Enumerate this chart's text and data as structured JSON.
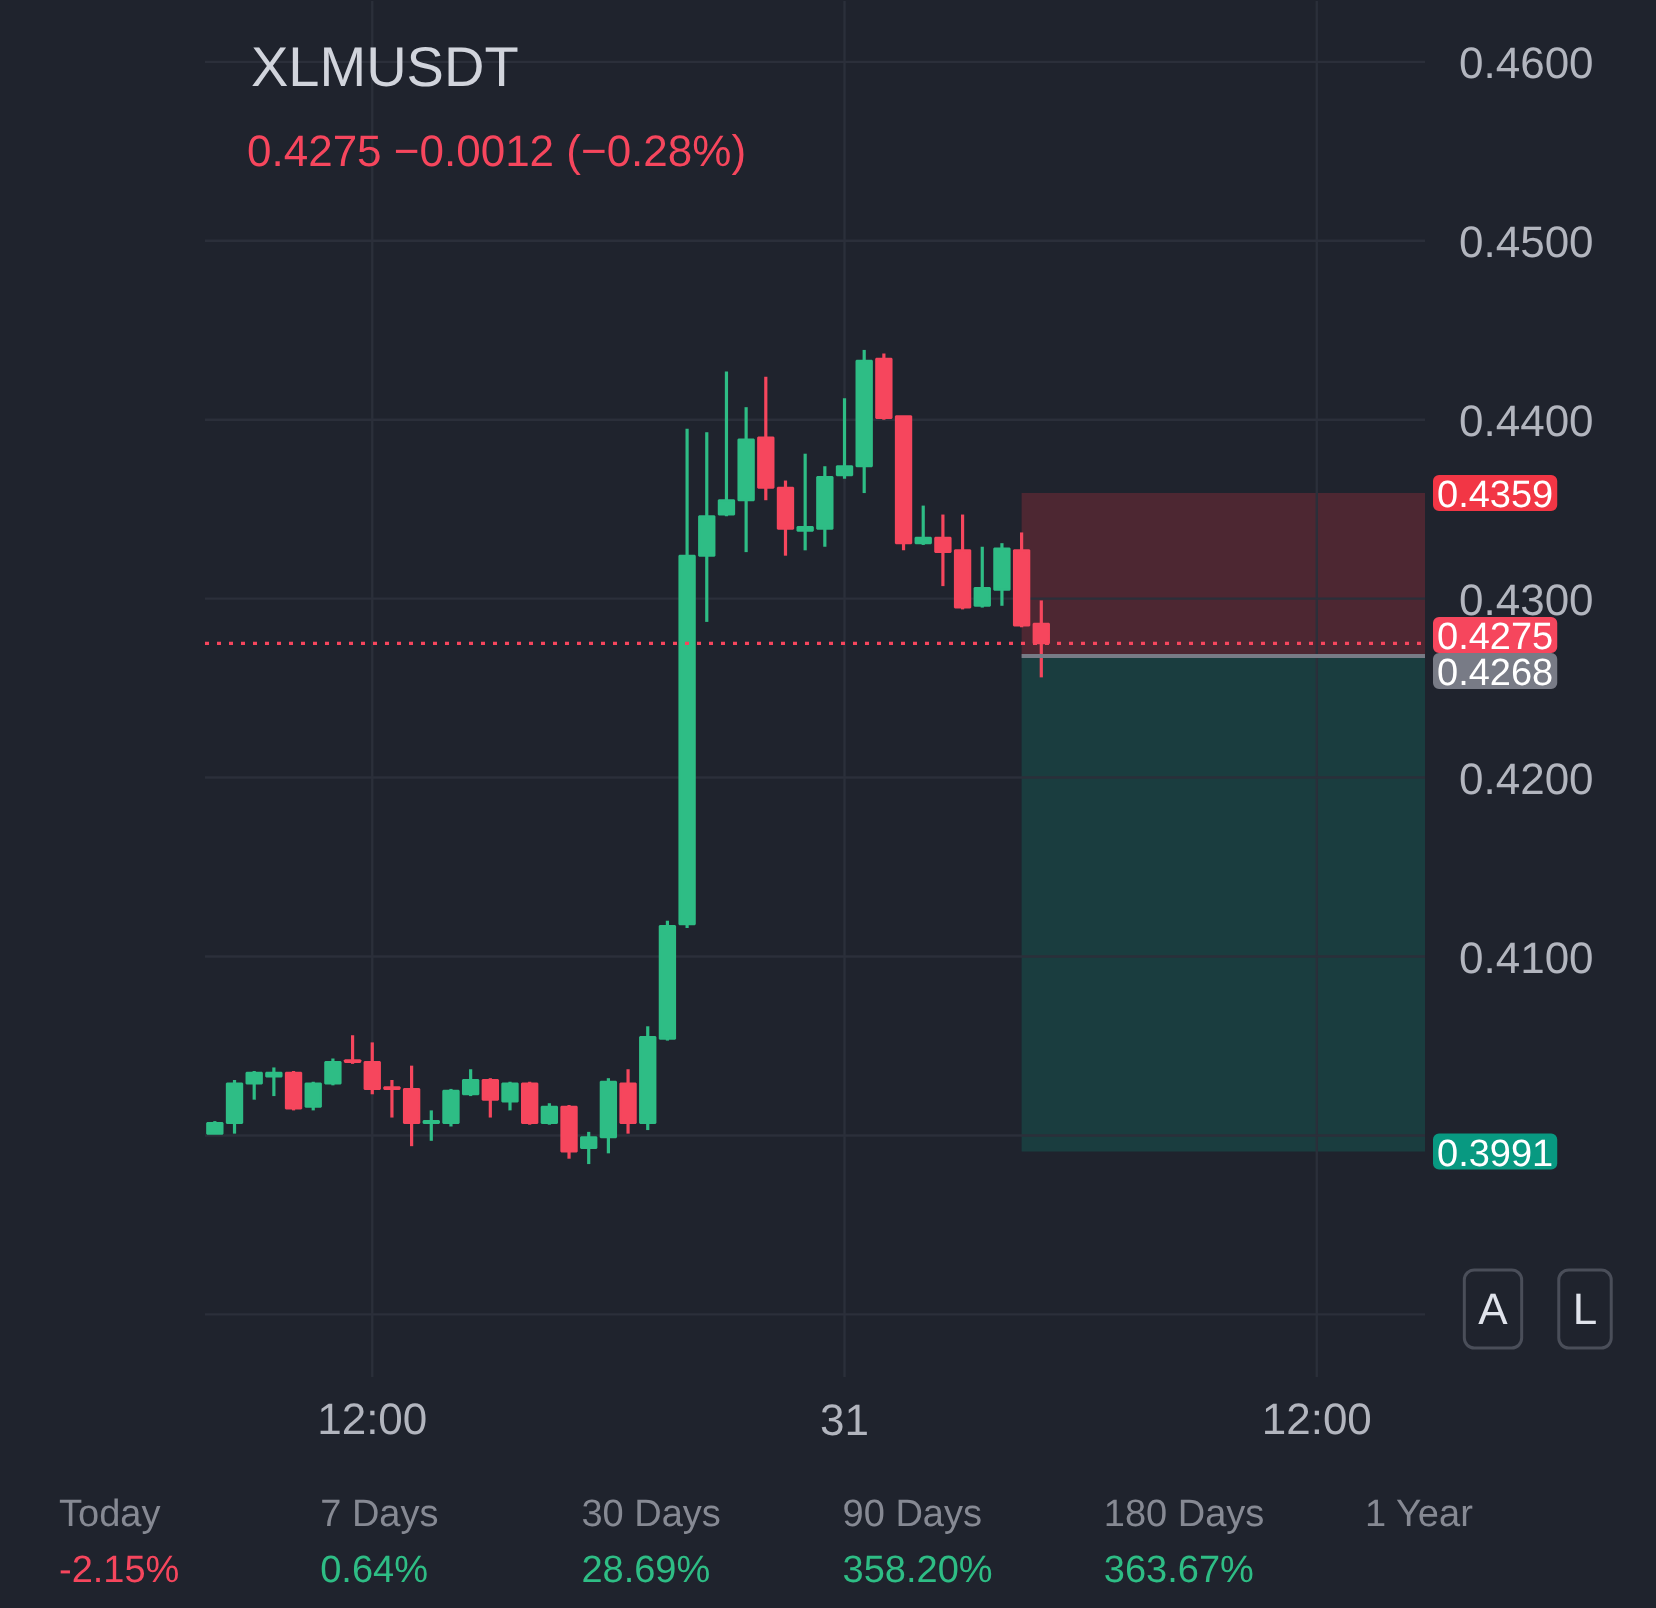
{
  "chart_data": {
    "type": "candlestick",
    "title": "XLMUSDT",
    "subtitle": "0.4275 −0.0012 (−0.28%)",
    "categories": [
      null,
      null,
      null,
      null,
      null,
      null,
      null,
      null,
      "12:00",
      null,
      null,
      null,
      null,
      null,
      null,
      null,
      null,
      null,
      null,
      null,
      null,
      null,
      null,
      null,
      null,
      null,
      null,
      null,
      null,
      null,
      null,
      null,
      "31",
      null,
      null,
      null,
      null,
      null,
      null,
      null,
      null,
      null,
      null,
      null,
      null,
      null,
      null,
      null,
      null,
      null,
      null,
      null,
      null,
      null,
      null,
      null,
      "12:00",
      null,
      null,
      null,
      null,
      null
    ],
    "ohlc": [
      [
        0.4001,
        0.4008,
        0.4001,
        0.4007
      ],
      [
        0.4007,
        0.4031,
        0.4001,
        0.4029
      ],
      [
        0.4029,
        0.4036,
        0.402,
        0.4035
      ],
      [
        0.4033,
        0.4038,
        0.4022,
        0.4035
      ],
      [
        0.4035,
        0.4036,
        0.4014,
        0.4015
      ],
      [
        0.4016,
        0.403,
        0.4014,
        0.4029
      ],
      [
        0.4029,
        0.4043,
        0.4028,
        0.4041
      ],
      [
        0.4042,
        0.4056,
        0.404,
        0.4041
      ],
      [
        0.4041,
        0.4052,
        0.4023,
        0.4026
      ],
      [
        0.4027,
        0.4031,
        0.401,
        0.4026
      ],
      [
        0.4026,
        0.4039,
        0.3994,
        0.4007
      ],
      [
        0.4007,
        0.4014,
        0.3997,
        0.4008
      ],
      [
        0.4007,
        0.4026,
        0.4005,
        0.4025
      ],
      [
        0.4023,
        0.4037,
        0.4022,
        0.4031
      ],
      [
        0.4031,
        0.4032,
        0.401,
        0.402
      ],
      [
        0.4019,
        0.403,
        0.4014,
        0.4029
      ],
      [
        0.4029,
        0.403,
        0.4006,
        0.4007
      ],
      [
        0.4007,
        0.4018,
        0.4006,
        0.4016
      ],
      [
        0.4016,
        0.4017,
        0.3987,
        0.3991
      ],
      [
        0.3993,
        0.4002,
        0.3984,
        0.3999
      ],
      [
        0.3999,
        0.4032,
        0.399,
        0.403
      ],
      [
        0.4029,
        0.4037,
        0.4001,
        0.4007
      ],
      [
        0.4007,
        0.4061,
        0.4003,
        0.4055
      ],
      [
        0.4054,
        0.412,
        0.4053,
        0.4117
      ],
      [
        0.4118,
        0.4395,
        0.4116,
        0.4324
      ],
      [
        0.4324,
        0.4393,
        0.4287,
        0.4346
      ],
      [
        0.4347,
        0.4427,
        0.4346,
        0.4355
      ],
      [
        0.4355,
        0.4407,
        0.4326,
        0.4389
      ],
      [
        0.439,
        0.4424,
        0.4355,
        0.4362
      ],
      [
        0.4362,
        0.4366,
        0.4324,
        0.4339
      ],
      [
        0.4338,
        0.4381,
        0.4327,
        0.434
      ],
      [
        0.4339,
        0.4374,
        0.4329,
        0.4368
      ],
      [
        0.4369,
        0.4412,
        0.4367,
        0.4374
      ],
      [
        0.4374,
        0.4439,
        0.4359,
        0.4433
      ],
      [
        0.4434,
        0.4437,
        0.44,
        0.4401
      ],
      [
        0.4402,
        0.4402,
        0.4327,
        0.4331
      ],
      [
        0.4331,
        0.4352,
        0.433,
        0.4334
      ],
      [
        0.4334,
        0.4347,
        0.4307,
        0.4326
      ],
      [
        0.4327,
        0.4347,
        0.4294,
        0.4295
      ],
      [
        0.4296,
        0.4329,
        0.4295,
        0.4306
      ],
      [
        0.4305,
        0.4331,
        0.4296,
        0.4328
      ],
      [
        0.4327,
        0.4337,
        0.4284,
        0.4285
      ],
      [
        0.4286,
        0.4299,
        0.4256,
        0.4275
      ],
      null,
      null,
      null,
      null,
      null,
      null,
      null,
      null,
      null,
      null,
      null,
      null,
      null,
      null,
      null,
      null,
      null,
      null,
      null
    ],
    "colors": [
      "#2ebd85",
      "#2ebd85",
      "#2ebd85",
      "#2ebd85",
      "#f6465d",
      "#2ebd85",
      "#2ebd85",
      "#f6465d",
      "#f6465d",
      "#f6465d",
      "#f6465d",
      "#2ebd85",
      "#2ebd85",
      "#2ebd85",
      "#f6465d",
      "#2ebd85",
      "#f6465d",
      "#2ebd85",
      "#f6465d",
      "#2ebd85",
      "#2ebd85",
      "#f6465d",
      "#2ebd85",
      "#2ebd85",
      "#2ebd85",
      "#2ebd85",
      "#2ebd85",
      "#2ebd85",
      "#f6465d",
      "#f6465d",
      "#2ebd85",
      "#2ebd85",
      "#2ebd85",
      "#2ebd85",
      "#f6465d",
      "#f6465d",
      "#2ebd85",
      "#f6465d",
      "#f6465d",
      "#2ebd85",
      "#2ebd85",
      "#f6465d",
      "#f6465d",
      null,
      null,
      null,
      null,
      null,
      null,
      null,
      null,
      null,
      null,
      null,
      null,
      null,
      null,
      null,
      null,
      null,
      null,
      null
    ],
    "ylim": [
      0.3865,
      0.4634
    ],
    "yticks": [
      {
        "value": 0.39,
        "label": null
      },
      {
        "value": 0.4,
        "label": null
      },
      {
        "value": 0.41,
        "label": "0.4100"
      },
      {
        "value": 0.42,
        "label": "0.4200"
      },
      {
        "value": 0.43,
        "label": "0.4300"
      },
      {
        "value": 0.44,
        "label": "0.4400"
      },
      {
        "value": 0.45,
        "label": "0.4500"
      },
      {
        "value": 0.46,
        "label": "0.4600"
      }
    ],
    "grid": true,
    "bands": [
      {
        "axis": "y",
        "from": 0.4268,
        "to": 0.4359,
        "label": "0.4359",
        "color": "#f23645"
      },
      {
        "axis": "y",
        "from": 0.3991,
        "to": 0.4268,
        "label": "0.3991",
        "color": "#089981"
      }
    ],
    "ref_lines": [
      {
        "axis": "y",
        "value": 0.4268,
        "label": "0.4268",
        "color": "#787b86"
      },
      {
        "axis": "y",
        "value": 0.4275,
        "label": "0.4275",
        "color": "#f6465d",
        "line_style": "dotted"
      }
    ],
    "annotations": [
      "A",
      "L",
      "Today",
      "-2.15%",
      "7 Days",
      "0.64%",
      "30 Days",
      "28.69%",
      "90 Days",
      "358.20%",
      "180 Days",
      "363.67%",
      "1 Year"
    ]
  }
}
